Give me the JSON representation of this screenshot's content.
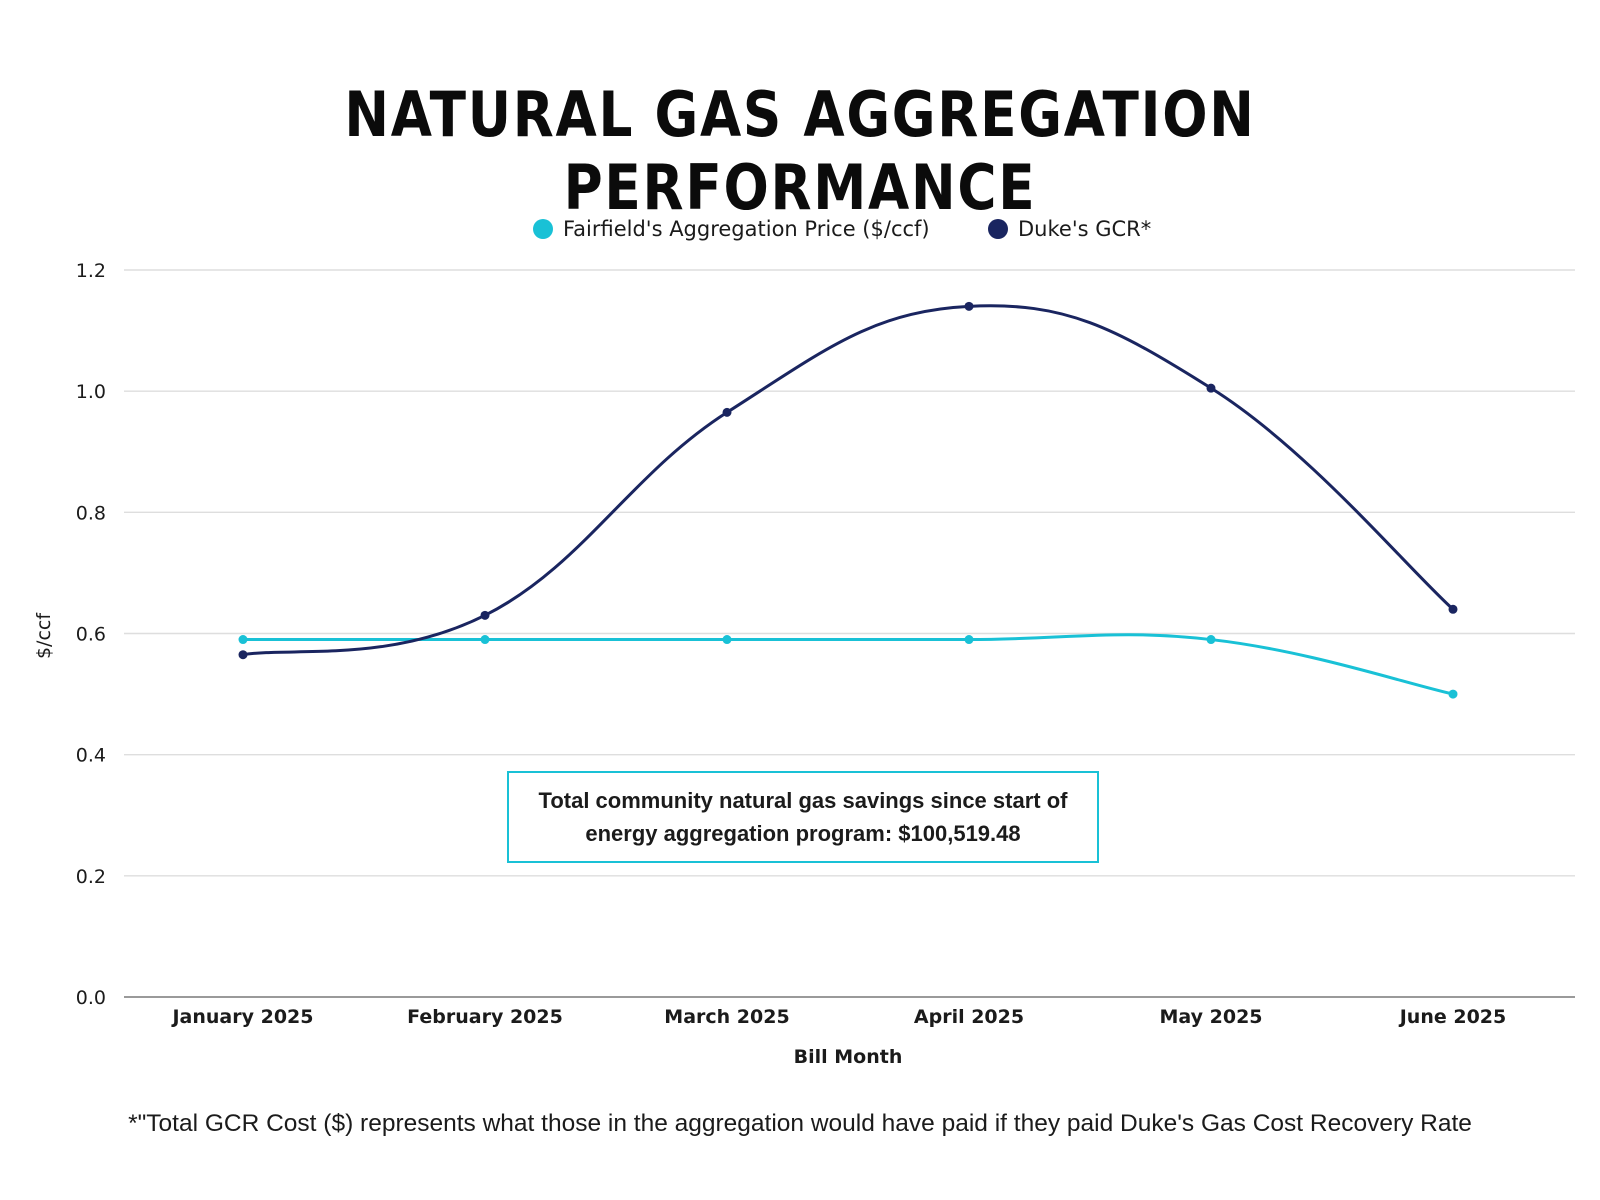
{
  "title": "NATURAL GAS AGGREGATION PERFORMANCE",
  "annotation": {
    "text": "Total community natural gas savings since start of energy aggregation program: $100,519.48"
  },
  "footnote": "*\"Total GCR Cost ($) represents what those in the aggregation would have paid if they paid Duke's Gas Cost Recovery Rate",
  "chart_data": {
    "type": "line",
    "title": "NATURAL GAS AGGREGATION PERFORMANCE",
    "xlabel": "Bill Month",
    "ylabel": "$/ccf",
    "categories": [
      "January 2025",
      "February 2025",
      "March 2025",
      "April 2025",
      "May 2025",
      "June 2025"
    ],
    "ylim": [
      0,
      1.2
    ],
    "yticks": [
      "0.0",
      "0.2",
      "0.4",
      "0.6",
      "0.8",
      "1.0",
      "1.2"
    ],
    "grid": true,
    "smooth": true,
    "legend_position": "top",
    "series": [
      {
        "name": "Fairfield's Aggregation Price ($/ccf)",
        "color": "#19c1d6",
        "values": [
          0.59,
          0.59,
          0.59,
          0.59,
          0.59,
          0.5
        ]
      },
      {
        "name": "Duke's GCR*",
        "color": "#1a2560",
        "values": [
          0.565,
          0.63,
          0.965,
          1.14,
          1.005,
          0.64
        ]
      }
    ]
  }
}
